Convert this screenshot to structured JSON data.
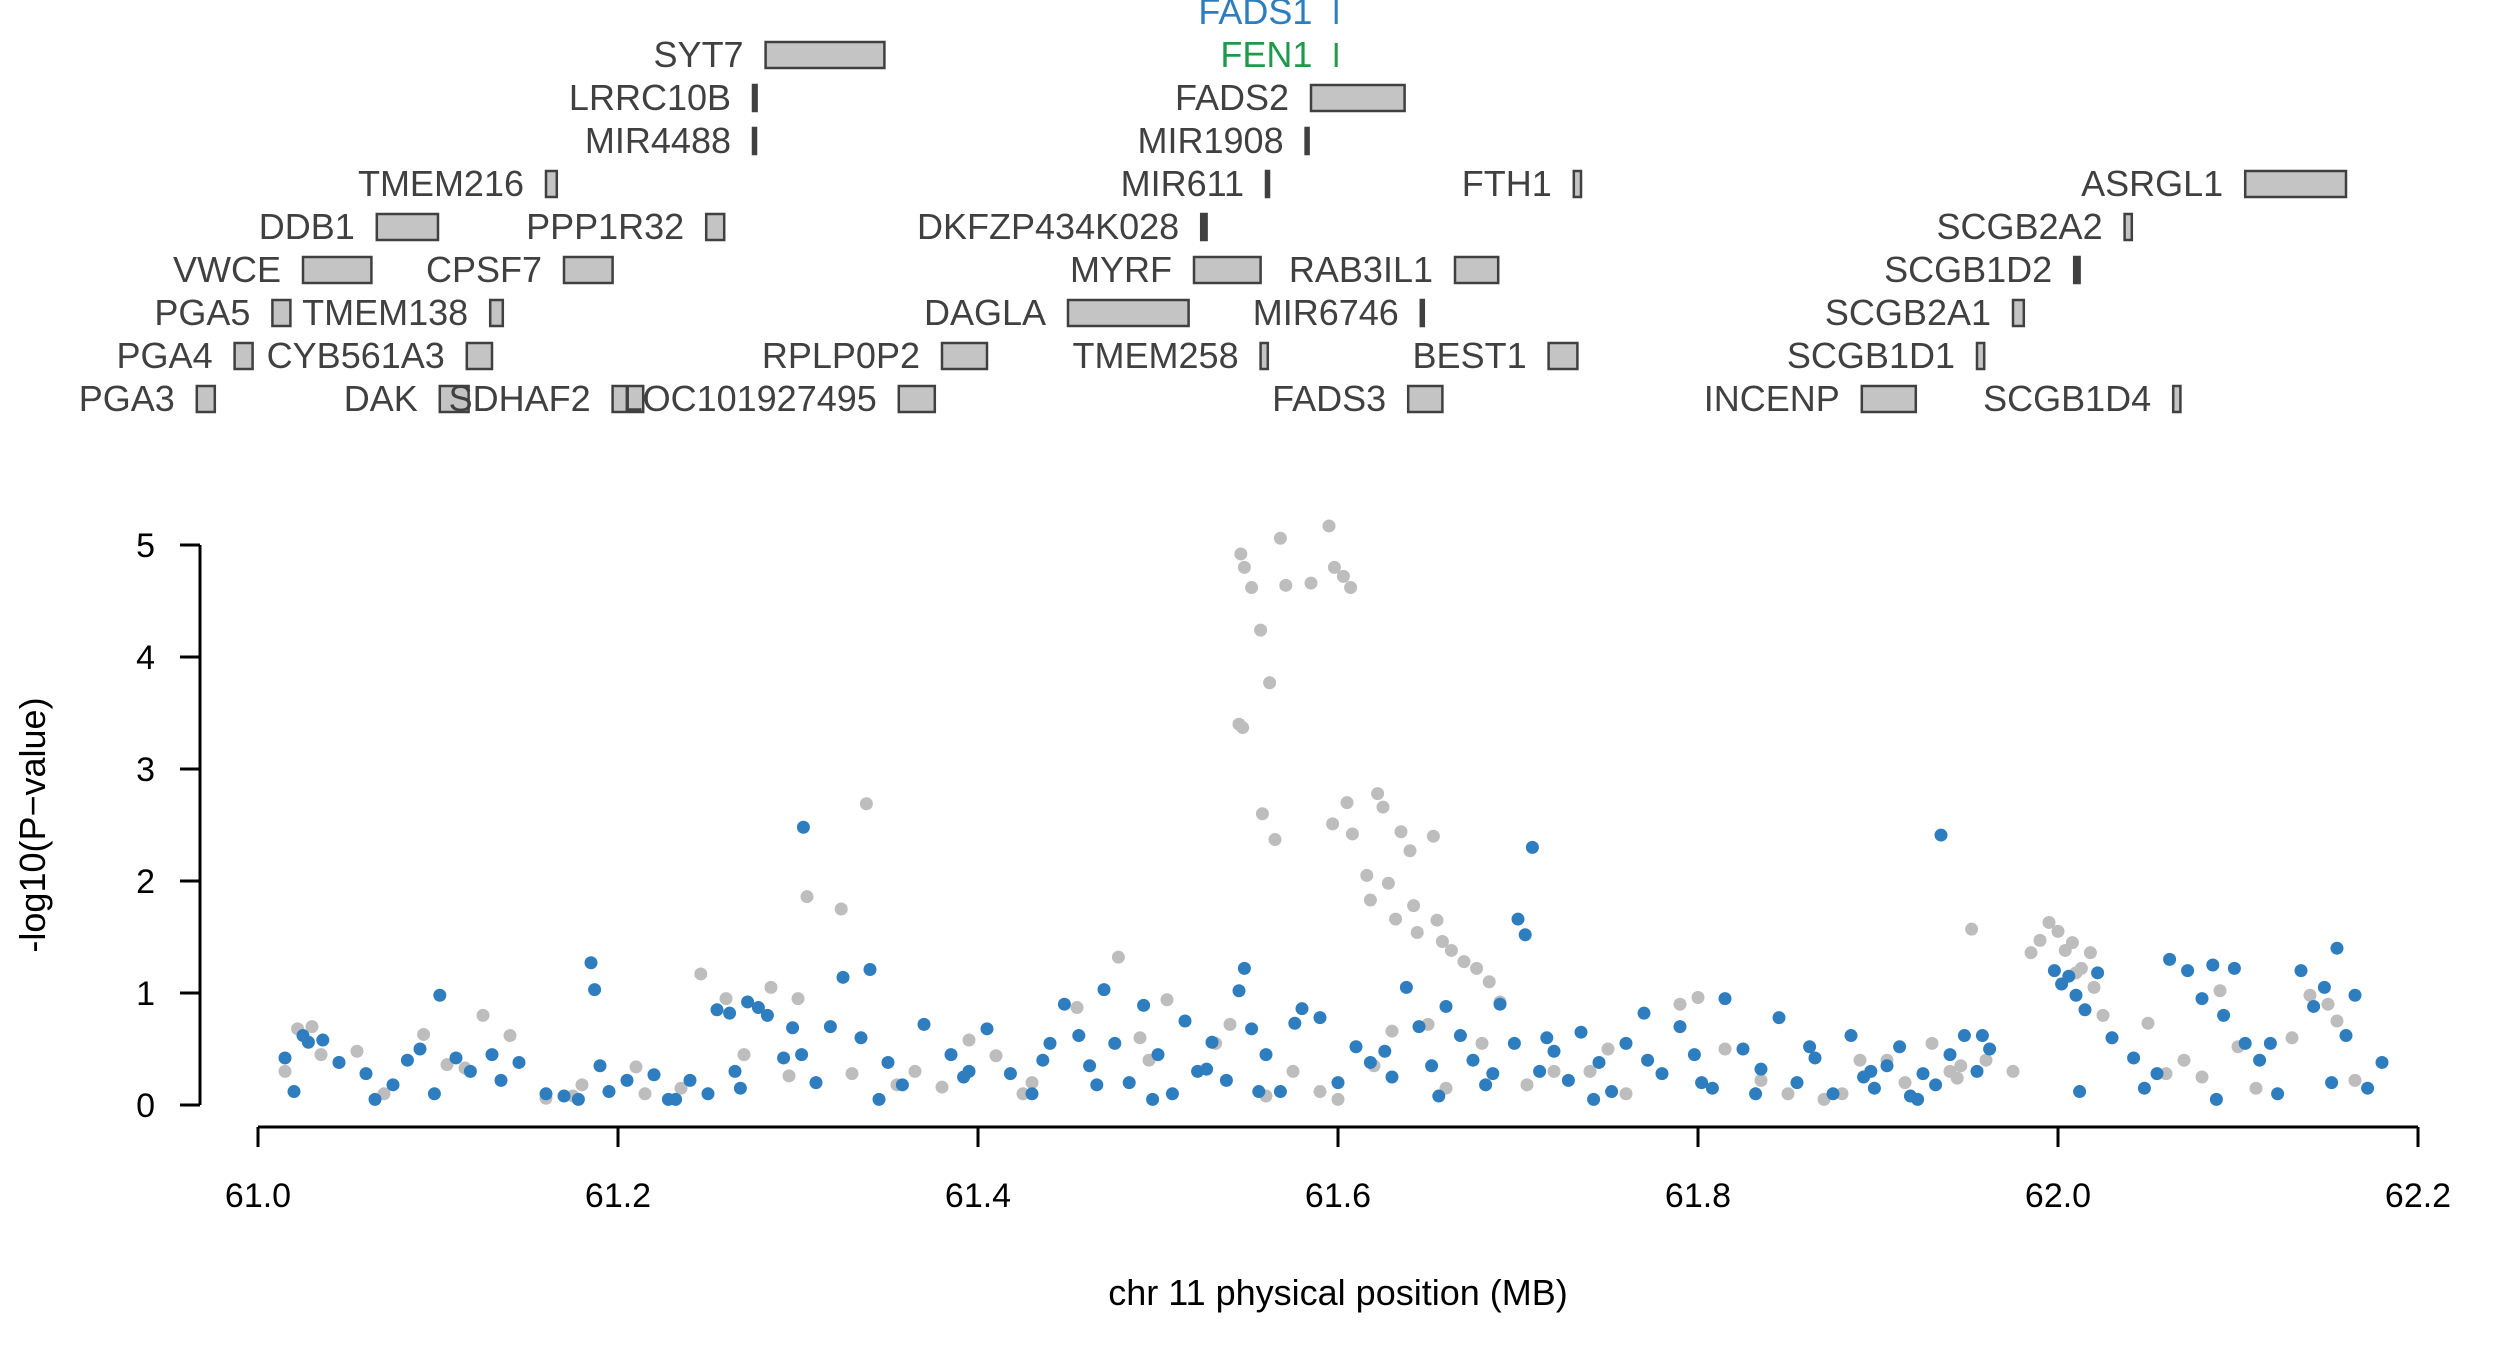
{
  "chart_data": {
    "type": "scatter",
    "xlabel": "chr 11 physical position (MB)",
    "ylabel": "-log10(P−value)",
    "xlim": [
      61.0,
      62.2
    ],
    "ylim": [
      0,
      5
    ],
    "x_ticks": [
      "61.0",
      "61.2",
      "61.4",
      "61.6",
      "61.8",
      "62.0",
      "62.2"
    ],
    "y_ticks": [
      "0",
      "1",
      "2",
      "3",
      "4",
      "5"
    ],
    "colors": {
      "blue": "#2e7dbf",
      "grey": "#bdbdbd",
      "green": "#1e9a4a",
      "gene_box_fill": "#c4c4c4",
      "gene_box_stroke": "#404040",
      "gene_label": "#404040"
    },
    "genes": [
      {
        "name": "FADS1",
        "start": 61.598,
        "end": 61.6,
        "row": -1,
        "color": "blue"
      },
      {
        "name": "SYT7",
        "start": 61.282,
        "end": 61.348,
        "row": 0
      },
      {
        "name": "FEN1",
        "start": 61.598,
        "end": 61.6,
        "row": 0,
        "color": "green"
      },
      {
        "name": "LRRC10B",
        "start": 61.275,
        "end": 61.277,
        "row": 1
      },
      {
        "name": "FADS2",
        "start": 61.585,
        "end": 61.637,
        "row": 1
      },
      {
        "name": "MIR4488",
        "start": 61.275,
        "end": 61.276,
        "row": 2
      },
      {
        "name": "MIR1908",
        "start": 61.582,
        "end": 61.583,
        "row": 2
      },
      {
        "name": "TMEM216",
        "start": 61.16,
        "end": 61.166,
        "row": 3
      },
      {
        "name": "MIR611",
        "start": 61.56,
        "end": 61.561,
        "row": 3
      },
      {
        "name": "FTH1",
        "start": 61.731,
        "end": 61.735,
        "row": 3
      },
      {
        "name": "ASRGL1",
        "start": 62.104,
        "end": 62.16,
        "row": 3
      },
      {
        "name": "DDB1",
        "start": 61.066,
        "end": 61.1,
        "row": 4
      },
      {
        "name": "PPP1R32",
        "start": 61.249,
        "end": 61.259,
        "row": 4
      },
      {
        "name": "DKFZP434K028",
        "start": 61.524,
        "end": 61.527,
        "row": 4
      },
      {
        "name": "SCGB2A2",
        "start": 62.037,
        "end": 62.041,
        "row": 4
      },
      {
        "name": "VWCE",
        "start": 61.025,
        "end": 61.063,
        "row": 5
      },
      {
        "name": "CPSF7",
        "start": 61.17,
        "end": 61.197,
        "row": 5
      },
      {
        "name": "MYRF",
        "start": 61.52,
        "end": 61.557,
        "row": 5
      },
      {
        "name": "RAB3IL1",
        "start": 61.665,
        "end": 61.689,
        "row": 5
      },
      {
        "name": "SCGB1D2",
        "start": 62.009,
        "end": 62.012,
        "row": 5
      },
      {
        "name": "PGA5",
        "start": 61.008,
        "end": 61.018,
        "row": 6
      },
      {
        "name": "TMEM138",
        "start": 61.129,
        "end": 61.136,
        "row": 6
      },
      {
        "name": "DAGLA",
        "start": 61.45,
        "end": 61.517,
        "row": 6
      },
      {
        "name": "MIR6746",
        "start": 61.646,
        "end": 61.647,
        "row": 6
      },
      {
        "name": "SCGB2A1",
        "start": 61.975,
        "end": 61.981,
        "row": 6
      },
      {
        "name": "PGA4",
        "start": 60.987,
        "end": 60.997,
        "row": 7
      },
      {
        "name": "CYB561A3",
        "start": 61.116,
        "end": 61.13,
        "row": 7
      },
      {
        "name": "RPLP0P2",
        "start": 61.38,
        "end": 61.405,
        "row": 7
      },
      {
        "name": "TMEM258",
        "start": 61.557,
        "end": 61.561,
        "row": 7
      },
      {
        "name": "BEST1",
        "start": 61.717,
        "end": 61.733,
        "row": 7
      },
      {
        "name": "SCGB1D1",
        "start": 61.955,
        "end": 61.959,
        "row": 7
      },
      {
        "name": "PGA3",
        "start": 60.966,
        "end": 60.976,
        "row": 8
      },
      {
        "name": "DAK",
        "start": 61.101,
        "end": 61.117,
        "row": 8
      },
      {
        "name": "SDHAF2",
        "start": 61.197,
        "end": 61.214,
        "row": 8
      },
      {
        "name": "LOC101927495",
        "start": 61.356,
        "end": 61.376,
        "row": 8
      },
      {
        "name": "FADS3",
        "start": 61.639,
        "end": 61.658,
        "row": 8
      },
      {
        "name": "INCENP",
        "start": 61.891,
        "end": 61.921,
        "row": 8
      },
      {
        "name": "SCGB1D4",
        "start": 62.064,
        "end": 62.068,
        "row": 8
      }
    ],
    "series": [
      {
        "color": "grey",
        "x": [
          61.546,
          61.548,
          61.552,
          61.557,
          61.562,
          61.568,
          61.571,
          61.585,
          61.595,
          61.598,
          61.603,
          61.607,
          61.545,
          61.547,
          61.558,
          61.565,
          61.605,
          61.622,
          61.625,
          61.635,
          61.653,
          61.64,
          61.597,
          61.608,
          61.616,
          61.628,
          61.642,
          61.655,
          61.618,
          61.632,
          61.644,
          61.658,
          61.663,
          61.67,
          61.677,
          61.684,
          61.305,
          61.324,
          61.338,
          61.015,
          61.022,
          61.03,
          61.045,
          61.092,
          61.115,
          61.14,
          61.18,
          61.21,
          61.246,
          61.27,
          61.295,
          61.33,
          61.38,
          61.395,
          61.425,
          61.478,
          61.505,
          61.54,
          61.575,
          61.6,
          61.63,
          61.66,
          61.69,
          61.72,
          61.76,
          61.8,
          61.835,
          61.87,
          61.905,
          61.94,
          61.975,
          62.01,
          62.05,
          62.08,
          62.1,
          62.14,
          62.165,
          61.035,
          61.07,
          61.105,
          61.16,
          61.215,
          61.26,
          61.285,
          61.355,
          61.41,
          61.455,
          61.495,
          61.532,
          61.59,
          61.65,
          61.705,
          61.75,
          61.79,
          61.85,
          61.89,
          61.93,
          61.96,
          62.02,
          62.06,
          62.09,
          62.13,
          62.155,
          61.99,
          61.995,
          62.0,
          62.004,
          62.008,
          62.013,
          62.018,
          61.985,
          62.025,
          61.952,
          61.946,
          61.944,
          61.055,
          61.125,
          61.175,
          61.235,
          61.3,
          61.365,
          61.43,
          61.49,
          61.56,
          61.62,
          61.68,
          61.74,
          61.815,
          61.88,
          61.915,
          62.03,
          62.07,
          62.11,
          62.15
        ],
        "y": [
          4.92,
          4.8,
          4.62,
          4.24,
          3.77,
          5.06,
          4.64,
          4.66,
          5.17,
          4.8,
          4.72,
          4.62,
          3.4,
          3.37,
          2.6,
          2.37,
          2.7,
          2.78,
          2.66,
          2.44,
          2.4,
          2.27,
          2.51,
          2.42,
          2.05,
          1.98,
          1.78,
          1.65,
          1.83,
          1.66,
          1.54,
          1.46,
          1.38,
          1.28,
          1.22,
          1.1,
          1.86,
          1.75,
          2.69,
          0.3,
          0.68,
          0.7,
          0.38,
          0.63,
          0.33,
          0.62,
          0.18,
          0.34,
          1.17,
          0.45,
          0.26,
          0.28,
          0.16,
          0.58,
          0.1,
          1.32,
          0.94,
          0.72,
          0.3,
          0.05,
          0.66,
          0.15,
          0.92,
          0.3,
          0.1,
          0.96,
          0.22,
          0.05,
          0.4,
          0.3,
          0.3,
          1.18,
          0.73,
          0.25,
          0.52,
          0.98,
          0.22,
          0.45,
          0.1,
          0.36,
          0.06,
          0.1,
          0.95,
          1.05,
          0.18,
          0.44,
          0.87,
          0.4,
          0.55,
          0.12,
          0.72,
          0.18,
          0.5,
          0.9,
          0.1,
          0.4,
          0.55,
          0.4,
          1.05,
          0.28,
          1.02,
          0.6,
          0.75,
          1.47,
          1.63,
          1.55,
          1.38,
          1.45,
          1.22,
          1.36,
          1.36,
          0.8,
          1.57,
          0.35,
          0.24,
          0.48,
          0.8,
          0.08,
          0.15,
          0.95,
          0.3,
          0.2,
          0.6,
          0.08,
          0.35,
          0.55,
          0.3,
          0.5,
          0.1,
          0.2,
          0.6,
          0.4,
          0.15,
          0.9
        ]
      },
      {
        "color": "blue",
        "x": [
          61.303,
          61.935,
          61.708,
          61.7,
          61.704,
          61.548,
          61.576,
          61.185,
          61.187,
          61.101,
          61.297,
          61.325,
          61.34,
          61.272,
          61.255,
          61.262,
          61.278,
          61.015,
          61.02,
          61.028,
          61.036,
          61.045,
          61.06,
          61.075,
          61.083,
          61.09,
          61.11,
          61.118,
          61.13,
          61.145,
          61.16,
          61.17,
          61.178,
          61.195,
          61.205,
          61.22,
          61.232,
          61.24,
          61.25,
          61.265,
          61.283,
          61.292,
          61.31,
          61.318,
          61.335,
          61.35,
          61.358,
          61.37,
          61.385,
          61.395,
          61.405,
          61.418,
          61.43,
          61.44,
          61.448,
          61.456,
          61.462,
          61.47,
          61.476,
          61.484,
          61.492,
          61.5,
          61.508,
          61.515,
          61.522,
          61.53,
          61.538,
          61.545,
          61.552,
          61.56,
          61.568,
          61.58,
          61.59,
          61.61,
          61.618,
          61.63,
          61.638,
          61.645,
          61.652,
          61.66,
          61.668,
          61.675,
          61.682,
          61.69,
          61.698,
          61.712,
          61.72,
          61.728,
          61.735,
          61.745,
          61.752,
          61.76,
          61.77,
          61.78,
          61.79,
          61.798,
          61.808,
          61.815,
          61.825,
          61.835,
          61.845,
          61.855,
          61.865,
          61.875,
          61.885,
          61.892,
          61.898,
          61.905,
          61.912,
          61.918,
          61.925,
          61.932,
          61.94,
          61.948,
          61.955,
          61.962,
          61.998,
          62.002,
          62.006,
          62.01,
          62.015,
          62.022,
          62.03,
          62.042,
          62.055,
          62.062,
          62.072,
          62.08,
          62.086,
          62.092,
          62.098,
          62.104,
          62.112,
          62.122,
          62.135,
          62.142,
          62.148,
          62.155,
          62.16,
          62.165,
          62.172,
          62.18,
          61.025,
          61.065,
          61.098,
          61.135,
          61.19,
          61.228,
          61.268,
          61.302,
          61.345,
          61.392,
          61.436,
          61.466,
          61.497,
          61.527,
          61.556,
          61.6,
          61.626,
          61.656,
          61.686,
          61.716,
          61.742,
          61.772,
          61.802,
          61.832,
          61.862,
          61.896,
          61.922,
          61.958,
          62.012,
          62.048,
          62.088,
          62.118,
          62.152
        ],
        "y": [
          2.48,
          2.41,
          2.3,
          1.66,
          1.52,
          1.22,
          0.73,
          1.27,
          1.03,
          0.98,
          0.69,
          1.14,
          1.21,
          0.92,
          0.85,
          0.82,
          0.87,
          0.42,
          0.12,
          0.56,
          0.58,
          0.38,
          0.28,
          0.18,
          0.4,
          0.5,
          0.42,
          0.3,
          0.45,
          0.38,
          0.1,
          0.08,
          0.05,
          0.12,
          0.22,
          0.27,
          0.05,
          0.22,
          0.1,
          0.3,
          0.8,
          0.42,
          0.2,
          0.7,
          0.6,
          0.38,
          0.18,
          0.72,
          0.45,
          0.3,
          0.68,
          0.28,
          0.1,
          0.55,
          0.9,
          0.62,
          0.35,
          1.03,
          0.55,
          0.2,
          0.89,
          0.45,
          0.1,
          0.75,
          0.3,
          0.56,
          0.22,
          1.02,
          0.68,
          0.45,
          0.12,
          0.86,
          0.78,
          0.52,
          0.38,
          0.25,
          1.05,
          0.7,
          0.35,
          0.88,
          0.62,
          0.4,
          0.18,
          0.9,
          0.55,
          0.3,
          0.48,
          0.22,
          0.65,
          0.38,
          0.12,
          0.55,
          0.82,
          0.28,
          0.7,
          0.45,
          0.15,
          0.95,
          0.5,
          0.32,
          0.78,
          0.2,
          0.42,
          0.1,
          0.62,
          0.25,
          0.15,
          0.35,
          0.52,
          0.08,
          0.28,
          0.18,
          0.45,
          0.62,
          0.3,
          0.5,
          1.2,
          1.08,
          1.15,
          0.98,
          0.85,
          1.18,
          0.6,
          0.42,
          0.28,
          1.3,
          1.2,
          0.95,
          1.25,
          0.8,
          1.22,
          0.55,
          0.4,
          0.1,
          1.2,
          0.88,
          1.05,
          1.4,
          0.62,
          0.98,
          0.15,
          0.38,
          0.62,
          0.05,
          0.1,
          0.22,
          0.35,
          0.05,
          0.15,
          0.45,
          0.05,
          0.25,
          0.4,
          0.18,
          0.05,
          0.32,
          0.12,
          0.2,
          0.48,
          0.08,
          0.28,
          0.6,
          0.05,
          0.4,
          0.2,
          0.1,
          0.52,
          0.3,
          0.05,
          0.62,
          0.12,
          0.15,
          0.05,
          0.55,
          0.2
        ]
      }
    ]
  }
}
